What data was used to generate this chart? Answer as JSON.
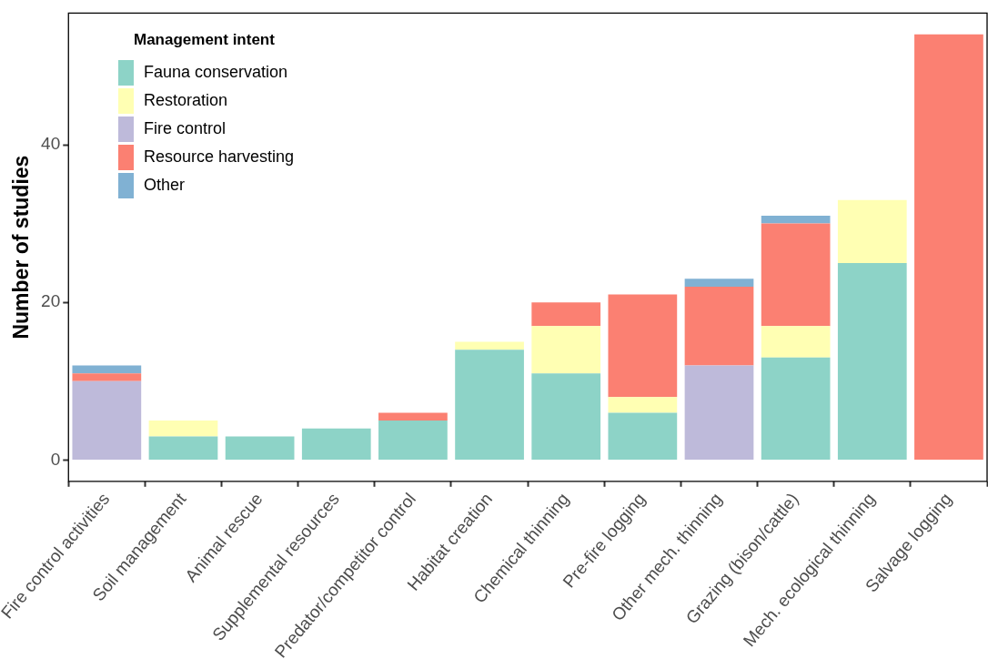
{
  "chart_data": {
    "type": "bar",
    "stacked": true,
    "ylabel": "Number of studies",
    "legend_title": "Management intent",
    "legend": "top left",
    "grid": false,
    "categories": [
      "Fire control activities",
      "Soil management",
      "Animal rescue",
      "Supplemental resources",
      "Predator/competitor control",
      "Habitat creation",
      "Chemical thinning",
      "Pre-fire logging",
      "Other mech. thinning",
      "Grazing (bison/cattle)",
      "Mech. ecological thinning",
      "Salvage logging"
    ],
    "ylim": [
      -2.7,
      56.7
    ],
    "yticks": [
      0,
      20,
      40
    ],
    "series": [
      {
        "name": "Fauna conservation",
        "color": "#8dd3c7",
        "values": [
          null,
          3,
          3,
          4,
          5,
          14,
          11,
          6,
          null,
          13,
          25,
          null
        ]
      },
      {
        "name": "Restoration",
        "color": "#ffffb3",
        "values": [
          null,
          2,
          null,
          null,
          null,
          1,
          6,
          2,
          null,
          4,
          8,
          null
        ]
      },
      {
        "name": "Fire control",
        "color": "#bebada",
        "values": [
          10,
          null,
          null,
          null,
          null,
          null,
          null,
          null,
          12,
          null,
          null,
          null
        ]
      },
      {
        "name": "Resource harvesting",
        "color": "#fb8072",
        "values": [
          1,
          null,
          null,
          null,
          1,
          null,
          3,
          13,
          10,
          13,
          null,
          54
        ]
      },
      {
        "name": "Other",
        "color": "#80b1d3",
        "values": [
          1,
          null,
          null,
          null,
          null,
          null,
          null,
          null,
          1,
          1,
          null,
          null
        ]
      }
    ]
  }
}
